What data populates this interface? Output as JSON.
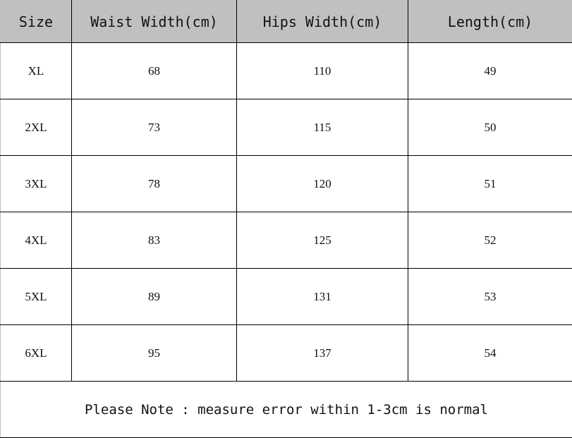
{
  "headers": [
    "Size",
    "Waist Width(cm)",
    "Hips Width(cm)",
    "Length(cm)"
  ],
  "rows": [
    [
      "XL",
      "68",
      "110",
      "49"
    ],
    [
      "2XL",
      "73",
      "115",
      "50"
    ],
    [
      "3XL",
      "78",
      "120",
      "51"
    ],
    [
      "4XL",
      "83",
      "125",
      "52"
    ],
    [
      "5XL",
      "89",
      "131",
      "53"
    ],
    [
      "6XL",
      "95",
      "137",
      "54"
    ]
  ],
  "note": "Please Note : measure error within 1-3cm is normal",
  "colors": {
    "header_bg": "#c0c0c0",
    "border": "#000000"
  }
}
